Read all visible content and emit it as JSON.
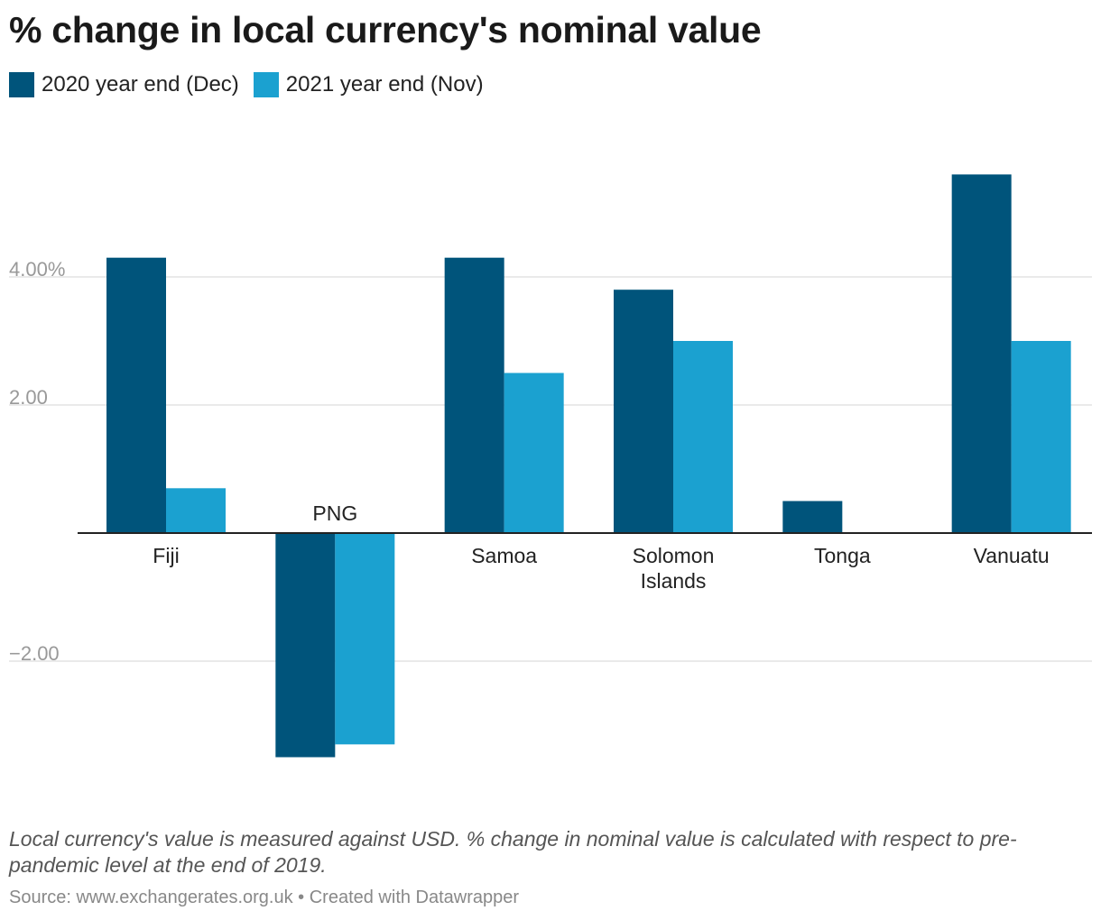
{
  "chart_data": {
    "type": "bar",
    "title": "% change in local currency's nominal value",
    "categories": [
      "Fiji",
      "PNG",
      "Samoa",
      "Solomon Islands",
      "Tonga",
      "Vanuatu"
    ],
    "category_lines": [
      [
        "Fiji"
      ],
      [
        "PNG"
      ],
      [
        "Samoa"
      ],
      [
        "Solomon",
        "Islands"
      ],
      [
        "Tonga"
      ],
      [
        "Vanuatu"
      ]
    ],
    "series": [
      {
        "name": "2020 year end (Dec)",
        "color": "#00547b",
        "values": [
          4.3,
          -3.5,
          4.3,
          3.8,
          0.5,
          5.6
        ]
      },
      {
        "name": "2021 year end (Nov)",
        "color": "#1ba1d0",
        "values": [
          0.7,
          -3.3,
          2.5,
          3.0,
          0.0,
          3.0
        ]
      }
    ],
    "ylim": [
      -4.0,
      6.0
    ],
    "yticks": [
      {
        "value": 4,
        "label": "4.00%"
      },
      {
        "value": 2,
        "label": "2.00"
      },
      {
        "value": -2,
        "label": "−2.00"
      }
    ],
    "grid": true,
    "legend_position": "top-left"
  },
  "notes": "Local currency's value is measured against USD. % change in nominal value is calculated with respect to pre-pandemic level at the end of 2019.",
  "source": "Source: www.exchangerates.org.uk • Created with Datawrapper"
}
